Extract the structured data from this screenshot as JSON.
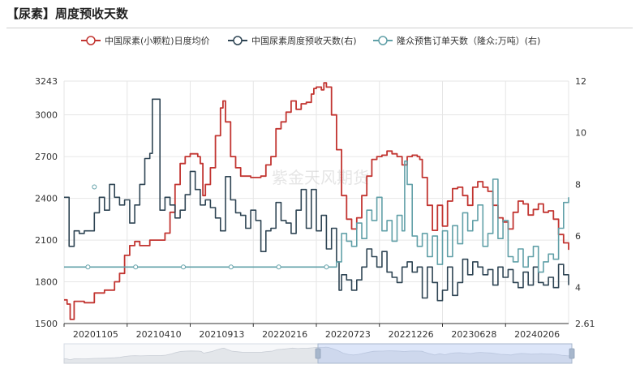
{
  "page_title": "【尿素】周度预收天数",
  "watermark": "紫金天风期货",
  "chart_data": {
    "type": "line",
    "title": "【尿素】周度预收天数",
    "x_tick_labels": [
      "20201105",
      "20210410",
      "20210913",
      "20220216",
      "20220723",
      "20221226",
      "20230628",
      "20240206"
    ],
    "y_left": {
      "min": 1500,
      "max": 3243,
      "ticks": [
        1500,
        1800,
        2100,
        2400,
        2700,
        3000,
        3243
      ]
    },
    "y_right": {
      "min": 2.61,
      "max": 12,
      "ticks": [
        2.61,
        4,
        6,
        8,
        10,
        12
      ]
    },
    "grid": true,
    "legend_position": "top-center",
    "series": [
      {
        "name": "中国尿素(小颗粒)日度均价",
        "axis": "left",
        "color": "#c23531",
        "points": [
          [
            0,
            1670
          ],
          [
            0.006,
            1640
          ],
          [
            0.012,
            1530
          ],
          [
            0.02,
            1660
          ],
          [
            0.04,
            1650
          ],
          [
            0.06,
            1720
          ],
          [
            0.08,
            1740
          ],
          [
            0.1,
            1800
          ],
          [
            0.11,
            1860
          ],
          [
            0.12,
            1990
          ],
          [
            0.13,
            2060
          ],
          [
            0.14,
            2090
          ],
          [
            0.15,
            2060
          ],
          [
            0.17,
            2100
          ],
          [
            0.19,
            2100
          ],
          [
            0.2,
            2150
          ],
          [
            0.21,
            2300
          ],
          [
            0.22,
            2500
          ],
          [
            0.23,
            2650
          ],
          [
            0.24,
            2700
          ],
          [
            0.25,
            2720
          ],
          [
            0.265,
            2700
          ],
          [
            0.27,
            2650
          ],
          [
            0.275,
            2420
          ],
          [
            0.28,
            2500
          ],
          [
            0.29,
            2620
          ],
          [
            0.3,
            2850
          ],
          [
            0.31,
            3050
          ],
          [
            0.315,
            3100
          ],
          [
            0.32,
            2950
          ],
          [
            0.33,
            2700
          ],
          [
            0.34,
            2620
          ],
          [
            0.35,
            2560
          ],
          [
            0.37,
            2550
          ],
          [
            0.39,
            2560
          ],
          [
            0.4,
            2640
          ],
          [
            0.41,
            2700
          ],
          [
            0.42,
            2900
          ],
          [
            0.43,
            2950
          ],
          [
            0.44,
            3020
          ],
          [
            0.45,
            3100
          ],
          [
            0.46,
            3040
          ],
          [
            0.47,
            3080
          ],
          [
            0.48,
            3090
          ],
          [
            0.49,
            3150
          ],
          [
            0.495,
            3190
          ],
          [
            0.5,
            3200
          ],
          [
            0.51,
            3180
          ],
          [
            0.515,
            3230
          ],
          [
            0.52,
            3200
          ],
          [
            0.53,
            3000
          ],
          [
            0.54,
            2750
          ],
          [
            0.55,
            2420
          ],
          [
            0.56,
            2250
          ],
          [
            0.57,
            2180
          ],
          [
            0.58,
            2260
          ],
          [
            0.59,
            2420
          ],
          [
            0.6,
            2560
          ],
          [
            0.61,
            2680
          ],
          [
            0.62,
            2700
          ],
          [
            0.63,
            2710
          ],
          [
            0.64,
            2740
          ],
          [
            0.65,
            2720
          ],
          [
            0.66,
            2700
          ],
          [
            0.67,
            2640
          ],
          [
            0.68,
            2700
          ],
          [
            0.69,
            2710
          ],
          [
            0.7,
            2700
          ],
          [
            0.705,
            2680
          ],
          [
            0.71,
            2550
          ],
          [
            0.72,
            2350
          ],
          [
            0.73,
            2170
          ],
          [
            0.74,
            2350
          ],
          [
            0.75,
            2200
          ],
          [
            0.76,
            2380
          ],
          [
            0.77,
            2470
          ],
          [
            0.78,
            2480
          ],
          [
            0.79,
            2420
          ],
          [
            0.8,
            2350
          ],
          [
            0.81,
            2480
          ],
          [
            0.82,
            2520
          ],
          [
            0.83,
            2480
          ],
          [
            0.84,
            2450
          ],
          [
            0.85,
            2350
          ],
          [
            0.86,
            2260
          ],
          [
            0.87,
            2230
          ],
          [
            0.88,
            2180
          ],
          [
            0.89,
            2300
          ],
          [
            0.9,
            2380
          ],
          [
            0.91,
            2360
          ],
          [
            0.92,
            2280
          ],
          [
            0.93,
            2320
          ],
          [
            0.94,
            2360
          ],
          [
            0.95,
            2300
          ],
          [
            0.96,
            2310
          ],
          [
            0.97,
            2250
          ],
          [
            0.98,
            2140
          ],
          [
            0.99,
            2080
          ],
          [
            1.0,
            2030
          ]
        ]
      },
      {
        "name": "中国尿素周度预收天数(右)",
        "axis": "right",
        "color": "#2f4554",
        "points": [
          [
            0,
            7.5
          ],
          [
            0.01,
            5.6
          ],
          [
            0.02,
            6.2
          ],
          [
            0.03,
            6.1
          ],
          [
            0.04,
            6.2
          ],
          [
            0.05,
            6.2
          ],
          [
            0.06,
            6.9
          ],
          [
            0.07,
            7.5
          ],
          [
            0.08,
            7.0
          ],
          [
            0.09,
            8.0
          ],
          [
            0.1,
            7.5
          ],
          [
            0.11,
            7.2
          ],
          [
            0.12,
            7.4
          ],
          [
            0.13,
            6.5
          ],
          [
            0.14,
            7.2
          ],
          [
            0.15,
            8.0
          ],
          [
            0.16,
            9.0
          ],
          [
            0.17,
            9.2
          ],
          [
            0.175,
            11.3
          ],
          [
            0.18,
            11.3
          ],
          [
            0.19,
            7.0
          ],
          [
            0.2,
            7.5
          ],
          [
            0.21,
            7.2
          ],
          [
            0.22,
            6.7
          ],
          [
            0.23,
            7.0
          ],
          [
            0.24,
            7.6
          ],
          [
            0.25,
            8.5
          ],
          [
            0.26,
            7.8
          ],
          [
            0.27,
            7.2
          ],
          [
            0.28,
            7.4
          ],
          [
            0.29,
            7.1
          ],
          [
            0.3,
            6.7
          ],
          [
            0.31,
            6.2
          ],
          [
            0.32,
            8.3
          ],
          [
            0.33,
            7.4
          ],
          [
            0.34,
            6.9
          ],
          [
            0.35,
            6.8
          ],
          [
            0.36,
            6.3
          ],
          [
            0.37,
            7.0
          ],
          [
            0.38,
            6.6
          ],
          [
            0.39,
            5.4
          ],
          [
            0.4,
            6.2
          ],
          [
            0.41,
            6.3
          ],
          [
            0.42,
            7.3
          ],
          [
            0.43,
            6.6
          ],
          [
            0.44,
            6.5
          ],
          [
            0.45,
            6.1
          ],
          [
            0.46,
            7.0
          ],
          [
            0.47,
            7.8
          ],
          [
            0.48,
            6.3
          ],
          [
            0.49,
            7.8
          ],
          [
            0.5,
            6.2
          ],
          [
            0.51,
            6.8
          ],
          [
            0.52,
            5.5
          ],
          [
            0.53,
            6.3
          ],
          [
            0.54,
            5.0
          ],
          [
            0.545,
            3.9
          ],
          [
            0.55,
            4.5
          ],
          [
            0.56,
            4.3
          ],
          [
            0.57,
            3.9
          ],
          [
            0.58,
            4.3
          ],
          [
            0.59,
            4.8
          ],
          [
            0.6,
            5.5
          ],
          [
            0.61,
            5.2
          ],
          [
            0.62,
            4.8
          ],
          [
            0.63,
            5.4
          ],
          [
            0.64,
            4.6
          ],
          [
            0.65,
            4.4
          ],
          [
            0.66,
            4.2
          ],
          [
            0.67,
            4.8
          ],
          [
            0.68,
            5.0
          ],
          [
            0.69,
            4.6
          ],
          [
            0.7,
            4.8
          ],
          [
            0.71,
            3.6
          ],
          [
            0.72,
            4.8
          ],
          [
            0.73,
            4.2
          ],
          [
            0.74,
            3.5
          ],
          [
            0.75,
            3.9
          ],
          [
            0.76,
            4.8
          ],
          [
            0.77,
            3.7
          ],
          [
            0.78,
            4.2
          ],
          [
            0.79,
            5.1
          ],
          [
            0.8,
            4.5
          ],
          [
            0.81,
            5.0
          ],
          [
            0.82,
            4.8
          ],
          [
            0.83,
            4.5
          ],
          [
            0.84,
            4.7
          ],
          [
            0.85,
            4.1
          ],
          [
            0.86,
            4.8
          ],
          [
            0.87,
            4.4
          ],
          [
            0.88,
            4.7
          ],
          [
            0.89,
            4.2
          ],
          [
            0.9,
            4.0
          ],
          [
            0.91,
            4.6
          ],
          [
            0.92,
            4.1
          ],
          [
            0.93,
            4.8
          ],
          [
            0.94,
            4.2
          ],
          [
            0.95,
            4.1
          ],
          [
            0.96,
            4.4
          ],
          [
            0.97,
            4.0
          ],
          [
            0.98,
            4.9
          ],
          [
            0.99,
            4.5
          ],
          [
            1.0,
            4.1
          ]
        ]
      },
      {
        "name": "隆众预售订单天数（隆众;万吨）(右)",
        "axis": "right",
        "color": "#61a0a8",
        "points": [
          [
            0,
            4.8
          ],
          [
            0.52,
            4.8
          ],
          [
            0.53,
            4.8
          ],
          [
            0.54,
            5.0
          ],
          [
            0.55,
            6.1
          ],
          [
            0.56,
            5.8
          ],
          [
            0.57,
            5.6
          ],
          [
            0.58,
            6.5
          ],
          [
            0.59,
            5.9
          ],
          [
            0.6,
            7.0
          ],
          [
            0.61,
            6.6
          ],
          [
            0.62,
            7.5
          ],
          [
            0.63,
            6.2
          ],
          [
            0.64,
            6.6
          ],
          [
            0.65,
            5.8
          ],
          [
            0.66,
            6.8
          ],
          [
            0.67,
            6.2
          ],
          [
            0.675,
            8.9
          ],
          [
            0.68,
            8.0
          ],
          [
            0.69,
            6.0
          ],
          [
            0.7,
            5.6
          ],
          [
            0.71,
            6.1
          ],
          [
            0.72,
            5.2
          ],
          [
            0.73,
            6.0
          ],
          [
            0.74,
            4.9
          ],
          [
            0.75,
            6.2
          ],
          [
            0.76,
            5.2
          ],
          [
            0.77,
            6.4
          ],
          [
            0.78,
            5.7
          ],
          [
            0.79,
            6.9
          ],
          [
            0.8,
            6.2
          ],
          [
            0.81,
            6.6
          ],
          [
            0.82,
            7.2
          ],
          [
            0.83,
            5.6
          ],
          [
            0.84,
            6.1
          ],
          [
            0.85,
            8.2
          ],
          [
            0.86,
            5.9
          ],
          [
            0.87,
            6.6
          ],
          [
            0.88,
            5.2
          ],
          [
            0.89,
            5.0
          ],
          [
            0.9,
            5.5
          ],
          [
            0.91,
            4.8
          ],
          [
            0.92,
            5.2
          ],
          [
            0.93,
            5.6
          ],
          [
            0.94,
            4.6
          ],
          [
            0.95,
            5.0
          ],
          [
            0.96,
            5.3
          ],
          [
            0.97,
            5.1
          ],
          [
            0.98,
            6.3
          ],
          [
            0.99,
            7.3
          ],
          [
            1.0,
            7.5
          ]
        ]
      }
    ]
  }
}
